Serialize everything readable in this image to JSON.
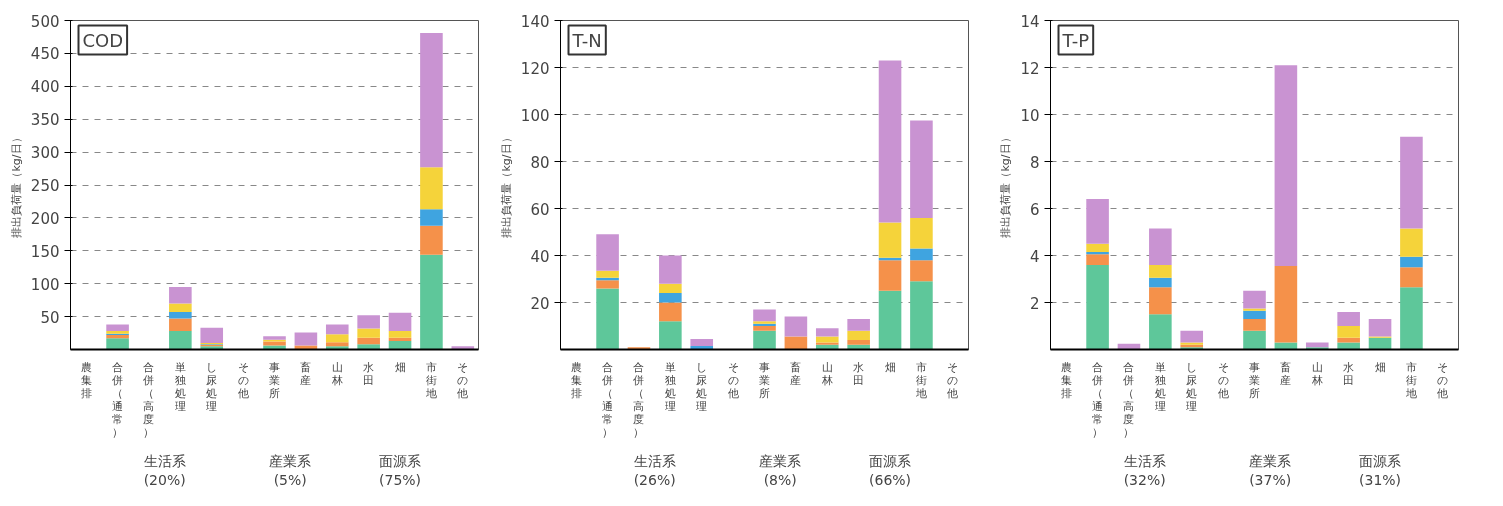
{
  "chart_data": [
    {
      "type": "bar",
      "title": "COD",
      "ylabel": "排出負荷量（kg/日）",
      "stacked": true,
      "grid": "y",
      "categories": [
        "農集排",
        "合併（通常）",
        "合併（高度）",
        "単独処理",
        "し尿処理",
        "その他",
        "事業所",
        "畜産",
        "山林",
        "水田",
        "畑",
        "市街地",
        "その他"
      ],
      "ylim": [
        0,
        500
      ],
      "yticks": [
        50,
        100,
        150,
        200,
        250,
        300,
        350,
        400,
        450,
        500
      ],
      "series": [
        {
          "color": "#5ec79a",
          "values": [
            0,
            17,
            0,
            28,
            5,
            0,
            6,
            0,
            5,
            8,
            13,
            144,
            0
          ]
        },
        {
          "color": "#f5914a",
          "values": [
            0,
            5,
            0,
            19,
            2,
            0,
            6,
            6,
            6,
            10,
            5,
            44,
            0
          ]
        },
        {
          "color": "#3fa4e0",
          "values": [
            0,
            2,
            0,
            10,
            1,
            0,
            null,
            0,
            0,
            0,
            0,
            25,
            0
          ]
        },
        {
          "color": "#f5d33a",
          "values": [
            0,
            4,
            0,
            13,
            2,
            0,
            3,
            0,
            12,
            14,
            10,
            64,
            0
          ]
        },
        {
          "color": "#c993d2",
          "values": [
            0,
            10,
            0,
            25,
            23,
            0,
            5,
            20,
            15,
            20,
            28,
            204,
            5
          ]
        }
      ],
      "annotations": [
        "生活系\n(20%)",
        "産業系\n(5%)",
        "面源系\n(75%)"
      ]
    },
    {
      "type": "bar",
      "title": "T-N",
      "ylabel": "排出負荷量（kg/日）",
      "stacked": true,
      "grid": "y",
      "categories": [
        "農集排",
        "合併（通常）",
        "合併（高度）",
        "単独処理",
        "し尿処理",
        "その他",
        "事業所",
        "畜産",
        "山林",
        "水田",
        "畑",
        "市街地",
        "その他"
      ],
      "ylim": [
        0,
        140
      ],
      "yticks": [
        20,
        40,
        60,
        80,
        100,
        120,
        140
      ],
      "series": [
        {
          "color": "#5ec79a",
          "values": [
            0,
            26,
            0,
            12,
            0,
            0,
            8,
            0,
            2,
            2,
            25,
            29,
            0
          ]
        },
        {
          "color": "#f5914a",
          "values": [
            0,
            3.5,
            1,
            8,
            0,
            0,
            2,
            5.5,
            1,
            2,
            13,
            9,
            0
          ]
        },
        {
          "color": "#3fa4e0",
          "values": [
            0,
            1,
            0,
            4,
            1.5,
            0,
            1,
            0,
            0,
            0,
            1,
            5,
            0
          ]
        },
        {
          "color": "#f5d33a",
          "values": [
            0,
            3,
            0,
            4,
            0,
            0,
            1,
            0,
            2.5,
            4,
            15,
            13,
            null
          ]
        },
        {
          "color": "#c993d2",
          "values": [
            0,
            15.5,
            0,
            12,
            3,
            0,
            5,
            8.5,
            3.5,
            5,
            69,
            41.5,
            0
          ]
        }
      ],
      "annotations": [
        "生活系\n(26%)",
        "産業系\n(8%)",
        "面源系\n(66%)"
      ]
    },
    {
      "type": "bar",
      "title": "T-P",
      "ylabel": "排出負荷量（kg/日）",
      "stacked": true,
      "grid": "y",
      "categories": [
        "農集排",
        "合併（通常）",
        "合併（高度）",
        "単独処理",
        "し尿処理",
        "その他",
        "事業所",
        "畜産",
        "山林",
        "水田",
        "畑",
        "市街地",
        "その他"
      ],
      "ylim": [
        0,
        14
      ],
      "yticks": [
        2,
        4,
        6,
        8,
        10,
        12,
        14
      ],
      "series": [
        {
          "color": "#5ec79a",
          "values": [
            0,
            3.6,
            0,
            1.5,
            0.1,
            0,
            0.8,
            0.3,
            0.1,
            0.3,
            0.5,
            2.65,
            0
          ]
        },
        {
          "color": "#f5914a",
          "values": [
            0,
            0.45,
            0,
            1.15,
            0.1,
            0,
            0.5,
            3.25,
            0,
            0.2,
            0,
            0.85,
            0
          ]
        },
        {
          "color": "#3fa4e0",
          "values": [
            0,
            0.1,
            0,
            0.4,
            0,
            0,
            0.35,
            0,
            0,
            0,
            0,
            0.45,
            0
          ]
        },
        {
          "color": "#f5d33a",
          "values": [
            0,
            0.35,
            0,
            0.55,
            0.1,
            0,
            0.1,
            0,
            0,
            0.5,
            0.05,
            1.2,
            0
          ]
        },
        {
          "color": "#c993d2",
          "values": [
            0,
            1.9,
            0.25,
            1.55,
            0.5,
            0,
            0.75,
            8.55,
            0.2,
            0.6,
            0.75,
            3.9,
            0
          ]
        }
      ],
      "annotations": [
        "生活系\n(32%)",
        "産業系\n(37%)",
        "面源系\n(31%)"
      ]
    }
  ]
}
